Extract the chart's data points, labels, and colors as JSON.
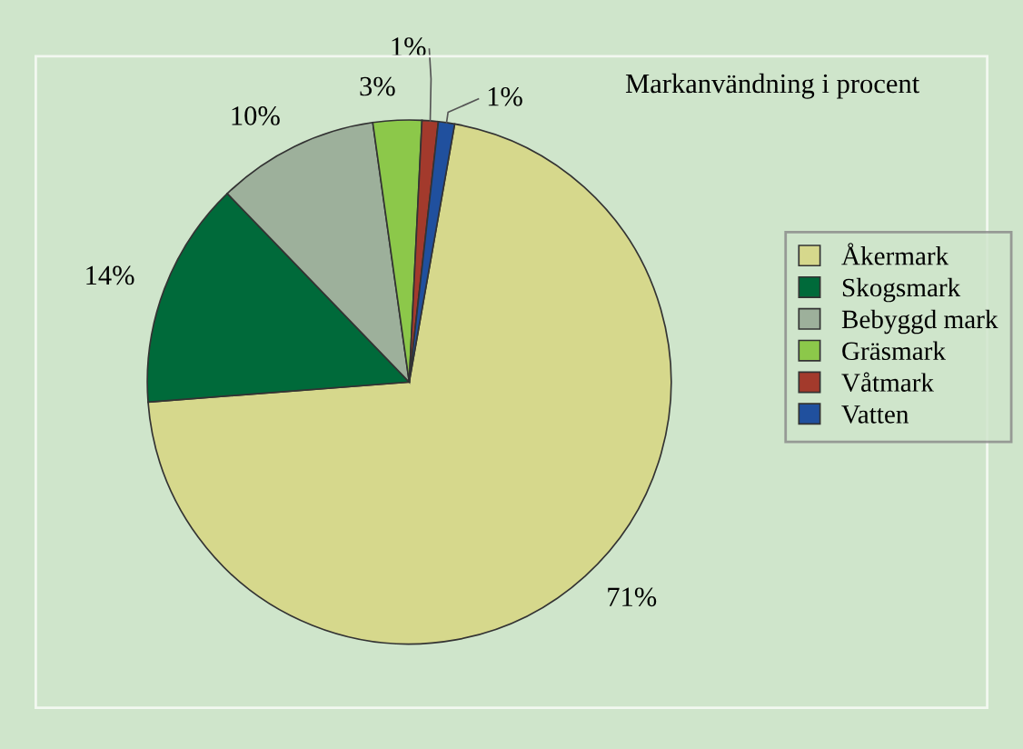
{
  "chart_data": {
    "type": "pie",
    "title": "Markanvändning i procent",
    "categories": [
      "Åkermark",
      "Skogsmark",
      "Bebyggd mark",
      "Gräsmark",
      "Våtmark",
      "Vatten"
    ],
    "values": [
      71,
      14,
      10,
      3,
      1,
      1
    ],
    "value_labels": [
      "71%",
      "14%",
      "10%",
      "3%",
      "1%",
      "1%"
    ],
    "colors": [
      "#d6d88c",
      "#006a3a",
      "#9db09b",
      "#8cc84a",
      "#a33a2c",
      "#20509e"
    ],
    "legend": "right"
  }
}
